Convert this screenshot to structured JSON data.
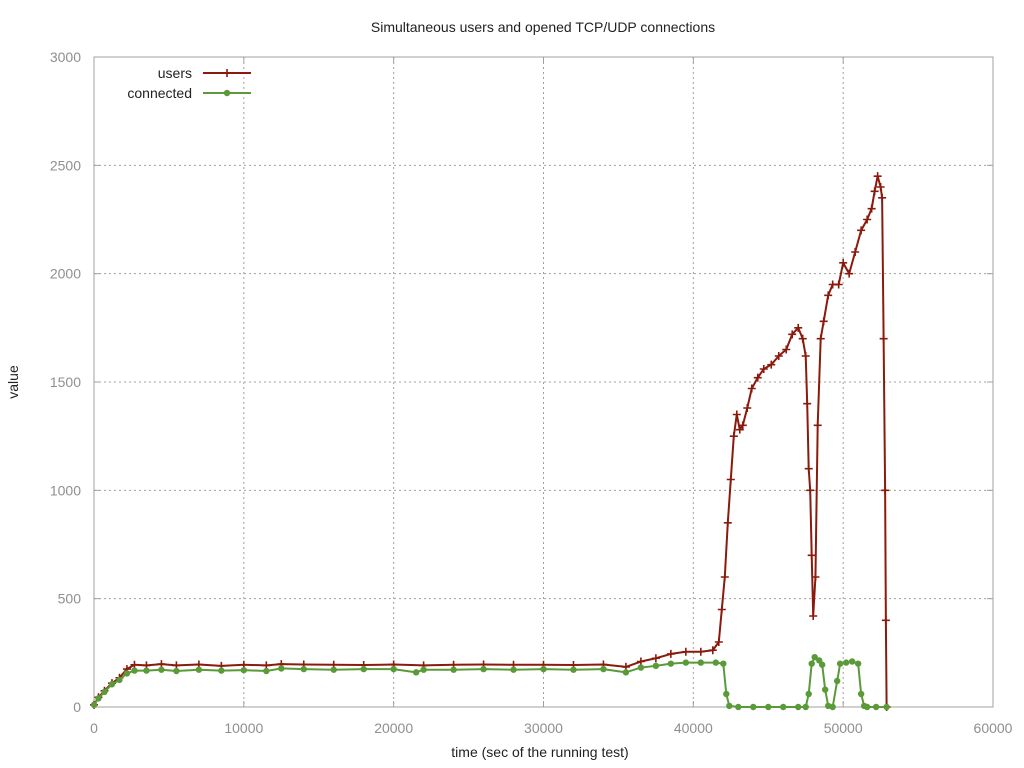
{
  "chart_data": {
    "type": "line",
    "title": "Simultaneous users and opened TCP/UDP connections",
    "xlabel": "time (sec of the running test)",
    "ylabel": "value",
    "xlim": [
      0,
      60000
    ],
    "ylim": [
      0,
      3000
    ],
    "x_ticks": [
      0,
      10000,
      20000,
      30000,
      40000,
      50000,
      60000
    ],
    "y_ticks": [
      0,
      500,
      1000,
      1500,
      2000,
      2500,
      3000
    ],
    "grid": true,
    "legend_position": "top-left",
    "series": [
      {
        "name": "users",
        "color": "#8b1a0e",
        "marker": "plus",
        "points": [
          [
            0,
            10
          ],
          [
            300,
            45
          ],
          [
            700,
            75
          ],
          [
            1200,
            110
          ],
          [
            1700,
            135
          ],
          [
            2200,
            175
          ],
          [
            2700,
            195
          ],
          [
            3500,
            192
          ],
          [
            4500,
            198
          ],
          [
            5500,
            192
          ],
          [
            7000,
            196
          ],
          [
            8500,
            190
          ],
          [
            10000,
            195
          ],
          [
            11500,
            192
          ],
          [
            12500,
            198
          ],
          [
            14000,
            196
          ],
          [
            16000,
            195
          ],
          [
            18000,
            194
          ],
          [
            20000,
            196
          ],
          [
            22000,
            192
          ],
          [
            24000,
            195
          ],
          [
            26000,
            196
          ],
          [
            28000,
            195
          ],
          [
            30000,
            195
          ],
          [
            32000,
            194
          ],
          [
            34000,
            196
          ],
          [
            35500,
            185
          ],
          [
            36500,
            210
          ],
          [
            37500,
            225
          ],
          [
            38500,
            245
          ],
          [
            39500,
            255
          ],
          [
            40500,
            255
          ],
          [
            41300,
            262
          ],
          [
            41700,
            300
          ],
          [
            41900,
            450
          ],
          [
            42100,
            600
          ],
          [
            42300,
            850
          ],
          [
            42500,
            1050
          ],
          [
            42700,
            1250
          ],
          [
            42900,
            1350
          ],
          [
            43100,
            1280
          ],
          [
            43300,
            1300
          ],
          [
            43600,
            1380
          ],
          [
            43900,
            1470
          ],
          [
            44300,
            1520
          ],
          [
            44700,
            1560
          ],
          [
            45200,
            1580
          ],
          [
            45700,
            1620
          ],
          [
            46200,
            1650
          ],
          [
            46600,
            1720
          ],
          [
            47000,
            1750
          ],
          [
            47300,
            1700
          ],
          [
            47500,
            1620
          ],
          [
            47600,
            1400
          ],
          [
            47700,
            1100
          ],
          [
            47800,
            1000
          ],
          [
            47900,
            700
          ],
          [
            48000,
            420
          ],
          [
            48150,
            600
          ],
          [
            48300,
            1300
          ],
          [
            48500,
            1700
          ],
          [
            48700,
            1780
          ],
          [
            49000,
            1900
          ],
          [
            49300,
            1950
          ],
          [
            49700,
            1950
          ],
          [
            50000,
            2050
          ],
          [
            50400,
            2000
          ],
          [
            50800,
            2100
          ],
          [
            51200,
            2200
          ],
          [
            51600,
            2250
          ],
          [
            51900,
            2300
          ],
          [
            52100,
            2380
          ],
          [
            52300,
            2450
          ],
          [
            52500,
            2400
          ],
          [
            52600,
            2350
          ],
          [
            52700,
            1700
          ],
          [
            52800,
            1000
          ],
          [
            52850,
            400
          ],
          [
            52900,
            0
          ]
        ]
      },
      {
        "name": "connected",
        "color": "#5a9a38",
        "marker": "circle",
        "points": [
          [
            0,
            10
          ],
          [
            300,
            40
          ],
          [
            700,
            70
          ],
          [
            1200,
            105
          ],
          [
            1700,
            125
          ],
          [
            2200,
            155
          ],
          [
            2700,
            168
          ],
          [
            3500,
            168
          ],
          [
            4500,
            172
          ],
          [
            5500,
            166
          ],
          [
            7000,
            172
          ],
          [
            8500,
            168
          ],
          [
            10000,
            170
          ],
          [
            11500,
            166
          ],
          [
            12500,
            178
          ],
          [
            14000,
            175
          ],
          [
            16000,
            172
          ],
          [
            18000,
            175
          ],
          [
            20000,
            175
          ],
          [
            21500,
            160
          ],
          [
            22000,
            172
          ],
          [
            24000,
            172
          ],
          [
            26000,
            175
          ],
          [
            28000,
            172
          ],
          [
            30000,
            175
          ],
          [
            32000,
            172
          ],
          [
            34000,
            175
          ],
          [
            35500,
            160
          ],
          [
            36500,
            182
          ],
          [
            37500,
            190
          ],
          [
            38500,
            200
          ],
          [
            39500,
            205
          ],
          [
            40500,
            205
          ],
          [
            41500,
            205
          ],
          [
            42000,
            200
          ],
          [
            42200,
            60
          ],
          [
            42400,
            5
          ],
          [
            43000,
            0
          ],
          [
            44000,
            0
          ],
          [
            45000,
            0
          ],
          [
            46000,
            0
          ],
          [
            47000,
            0
          ],
          [
            47500,
            0
          ],
          [
            47700,
            60
          ],
          [
            47900,
            200
          ],
          [
            48100,
            230
          ],
          [
            48400,
            215
          ],
          [
            48600,
            195
          ],
          [
            48800,
            80
          ],
          [
            49000,
            5
          ],
          [
            49300,
            0
          ],
          [
            49600,
            120
          ],
          [
            49800,
            200
          ],
          [
            50200,
            205
          ],
          [
            50600,
            210
          ],
          [
            51000,
            200
          ],
          [
            51200,
            60
          ],
          [
            51400,
            5
          ],
          [
            51600,
            0
          ],
          [
            52200,
            0
          ],
          [
            52900,
            0
          ]
        ]
      }
    ]
  }
}
